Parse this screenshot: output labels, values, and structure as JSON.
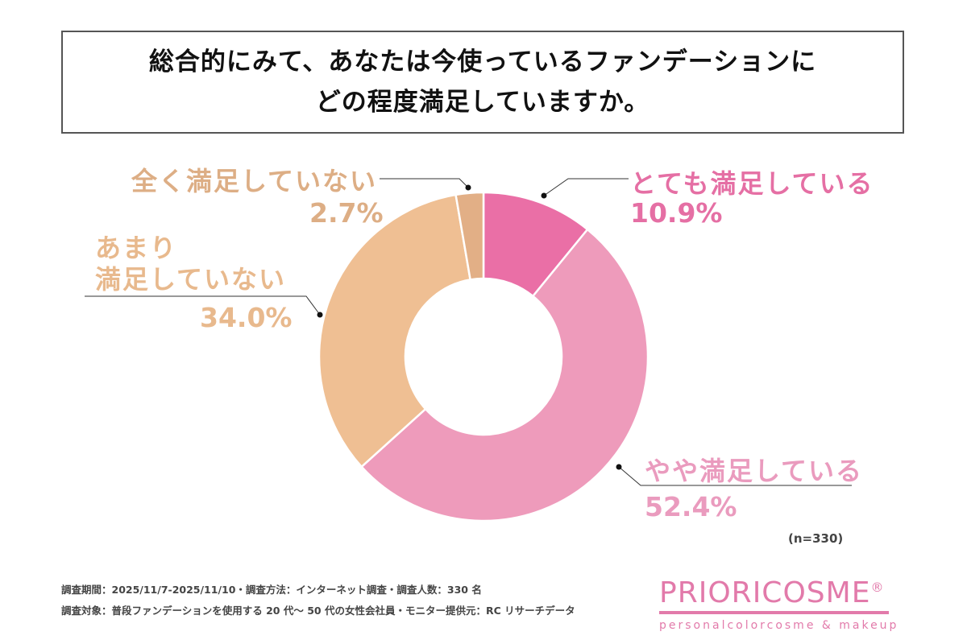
{
  "title": {
    "line1": "総合的にみて、あなたは今使っているファンデーションに",
    "line2": "どの程度満足していますか。"
  },
  "chart_data": {
    "type": "pie",
    "donut": true,
    "start_angle": "12 o'clock, clockwise",
    "slices": [
      {
        "label": "とても満足している",
        "value": 10.9,
        "value_label": "10.9%",
        "color": "#EA6FA6",
        "label_color": "#E56FA4"
      },
      {
        "label": "やや満足している",
        "value": 52.4,
        "value_label": "52.4%",
        "color": "#EE9BBB",
        "label_color": "#EA9BBE"
      },
      {
        "label_line1": "あまり",
        "label_line2": "満足していない",
        "value": 34.0,
        "value_label": "34.0%",
        "color": "#EFBF93",
        "label_color": "#E8B98D"
      },
      {
        "label": "全く満足していない",
        "value": 2.7,
        "value_label": "2.7%",
        "color": "#E2AF86",
        "label_color": "#DDAE85"
      }
    ],
    "n_label": "(n=330)"
  },
  "footer": {
    "line1": "調査期間：2025/11/7-2025/11/10・調査方法：インターネット調査・調査人数：330 名",
    "line2": "調査対象：普段ファンデーションを使用する 20 代〜 50 代の女性会社員・モニター提供元：RC リサーチデータ"
  },
  "logo": {
    "main": "PRIORICOSME",
    "mark": "®",
    "sub": "personalcolorcosme & makeup"
  }
}
